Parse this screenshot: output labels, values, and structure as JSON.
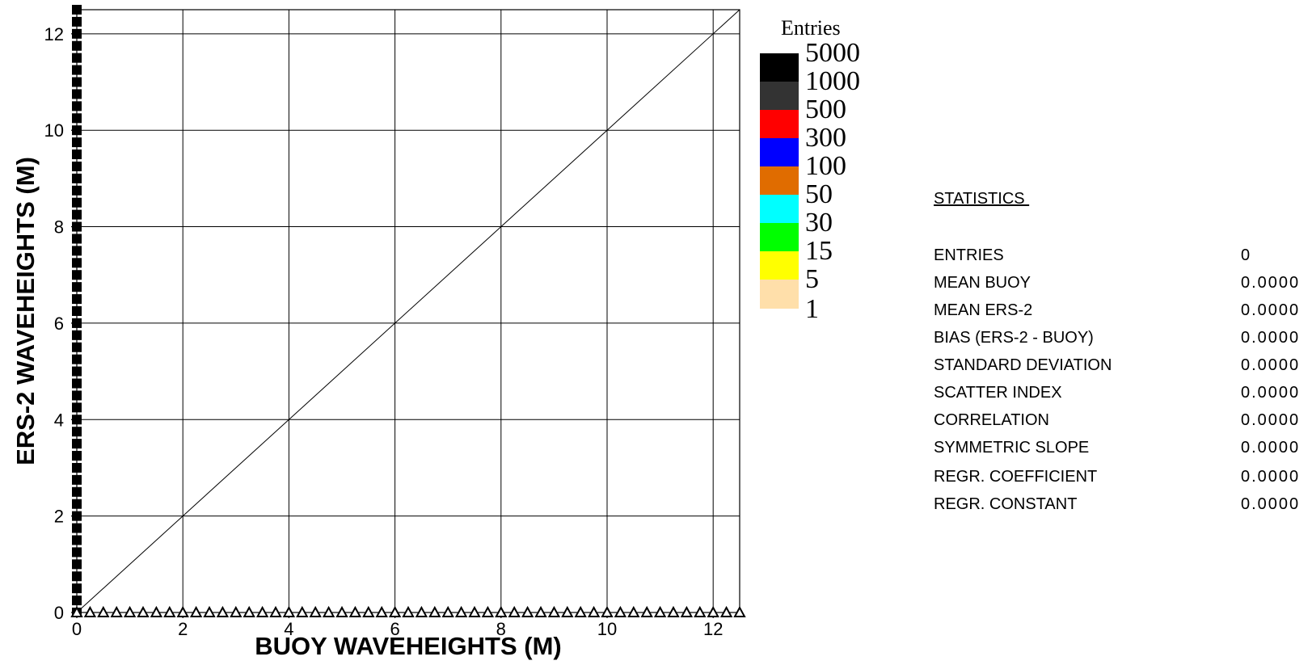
{
  "chart_data": {
    "type": "heatmap",
    "title": "",
    "xlabel": "BUOY  WAVEHEIGHTS (M)",
    "ylabel": "ERS-2  WAVEHEIGHTS (M)",
    "xlim": [
      0,
      12.5
    ],
    "ylim": [
      0,
      12.5
    ],
    "x_ticks": [
      "0",
      "2",
      "4",
      "6",
      "8",
      "10",
      "12"
    ],
    "y_ticks": [
      "0",
      "2",
      "4",
      "6",
      "8",
      "10",
      "12"
    ],
    "grid": true,
    "reference_line": {
      "from": [
        0,
        0
      ],
      "to": [
        12.5,
        12.5
      ]
    },
    "x_axis_marker": "triangle",
    "y_axis_marker": "square",
    "marker_step": 0.25,
    "entries": 0,
    "legend": {
      "title": "Entries",
      "placement": "right",
      "levels": [
        {
          "label": "5000",
          "color": "#000000"
        },
        {
          "label": "1000",
          "color": "#333333"
        },
        {
          "label": "500",
          "color": "#ff0000"
        },
        {
          "label": "300",
          "color": "#0000ff"
        },
        {
          "label": "100",
          "color": "#e06c00"
        },
        {
          "label": "50",
          "color": "#00ffff"
        },
        {
          "label": "30",
          "color": "#00ff00"
        },
        {
          "label": "15",
          "color": "#ffff00"
        },
        {
          "label": "5",
          "color": "#ffdfaa"
        },
        {
          "label": "1",
          "color": ""
        }
      ]
    }
  },
  "statistics": {
    "title": "STATISTICS ",
    "rows": [
      {
        "name": "ENTRIES",
        "value": "0"
      },
      {
        "name": "MEAN BUOY",
        "value": "0.0000"
      },
      {
        "name": "MEAN ERS-2",
        "value": "0.0000"
      },
      {
        "name": "BIAS (ERS-2 - BUOY)",
        "value": "0.0000"
      },
      {
        "name": "STANDARD DEVIATION",
        "value": "0.0000"
      },
      {
        "name": "SCATTER INDEX",
        "value": "0.0000"
      },
      {
        "name": "CORRELATION",
        "value": "0.0000"
      },
      {
        "name": "SYMMETRIC SLOPE",
        "value": "0.0000"
      },
      {
        "name": "REGR. COEFFICIENT",
        "value": "0.0000"
      },
      {
        "name": "REGR. CONSTANT",
        "value": "0.0000"
      }
    ]
  }
}
